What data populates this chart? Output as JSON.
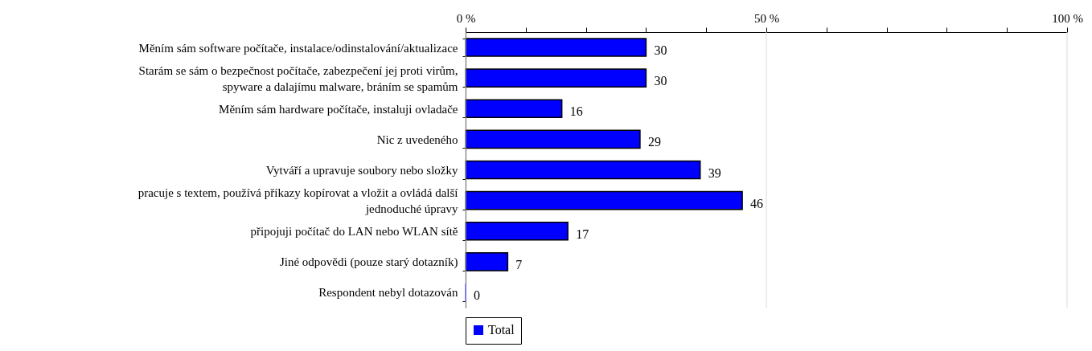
{
  "chart_data": {
    "type": "bar",
    "orientation": "horizontal",
    "categories": [
      "Měním sám software počítače, instalace/odinstalování/aktualizace",
      "Starám se sám o bezpečnost počítače, zabezpečení jej proti virům, spyware a dalajímu malware, bráním se spamům",
      "Měním sám hardware počítače, instaluji ovladače",
      "Nic z uvedeného",
      "Vytváří a upravuje soubory nebo složky",
      "pracuje s textem, používá příkazy kopírovat a vložit a ovládá další jednoduché úpravy",
      "připojuji počítač do LAN nebo WLAN sítě",
      "Jiné odpovědi (pouze starý dotazník)",
      "Respondent nebyl dotazován"
    ],
    "series": [
      {
        "name": "Total",
        "color": "#0000ff",
        "values": [
          30,
          30,
          16,
          29,
          39,
          46,
          17,
          7,
          0
        ]
      }
    ],
    "data_labels": true,
    "xlim": [
      0,
      100
    ],
    "xticks": [
      {
        "value": 0,
        "label": "0 %"
      },
      {
        "value": 10,
        "label": null
      },
      {
        "value": 20,
        "label": null
      },
      {
        "value": 30,
        "label": null
      },
      {
        "value": 40,
        "label": null
      },
      {
        "value": 50,
        "label": "50 %"
      },
      {
        "value": 60,
        "label": null
      },
      {
        "value": 70,
        "label": null
      },
      {
        "value": 80,
        "label": null
      },
      {
        "value": 90,
        "label": null
      },
      {
        "value": 100,
        "label": "100 %"
      }
    ],
    "grid": "x",
    "legend": "bottom"
  }
}
